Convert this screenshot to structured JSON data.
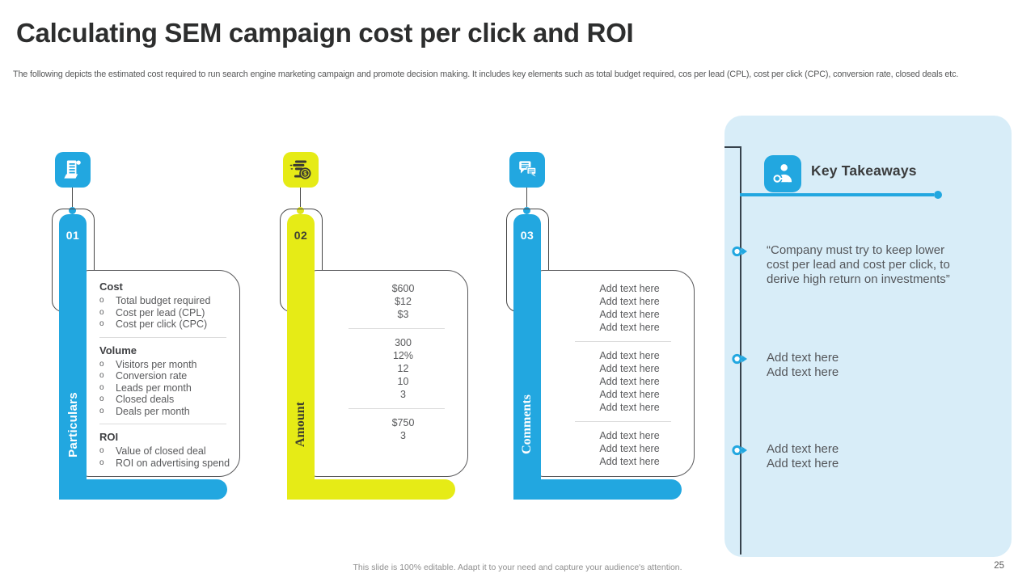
{
  "header": {
    "title": "Calculating SEM campaign cost per click and ROI",
    "subtitle": "The following depicts the estimated cost required to run search engine marketing campaign and promote decision making. It includes key elements such as total budget required, cos per lead (CPL), cost per click (CPC), conversion rate, closed deals etc."
  },
  "colors": {
    "blue": "#22a7e0",
    "yellow": "#e6eb16",
    "panel_bg": "#d8edf8",
    "connector_dark": "#37424c",
    "text_dark": "#3f4043",
    "text_gray": "#595a5c"
  },
  "columns": [
    {
      "number": "01",
      "label": "Particulars",
      "icon": "receipt-icon",
      "theme": "blue",
      "sections": [
        {
          "heading": "Cost",
          "items": [
            "Total budget required",
            "Cost per lead (CPL)",
            "Cost per click (CPC)"
          ]
        },
        {
          "heading": "Volume",
          "items": [
            "Visitors per month",
            "Conversion rate",
            "Leads per month",
            "Closed deals",
            "Deals per month"
          ]
        },
        {
          "heading": "ROI",
          "items": [
            "Value of closed deal",
            "ROI on advertising spend"
          ]
        }
      ]
    },
    {
      "number": "02",
      "label": "Amount",
      "icon": "money-coins-icon",
      "theme": "yellow",
      "value_groups": [
        [
          "$600",
          "$12",
          "$3"
        ],
        [
          "300",
          "12%",
          "12",
          "10",
          "3"
        ],
        [
          "$750",
          "3"
        ]
      ]
    },
    {
      "number": "03",
      "label": "Comments",
      "icon": "chat-bubbles-icon",
      "theme": "blue",
      "value_groups": [
        [
          "Add text here",
          "Add text here",
          "Add text here",
          "Add text here"
        ],
        [
          "Add text here",
          "Add text here",
          "Add text here",
          "Add text here",
          "Add text here"
        ],
        [
          "Add text here",
          "Add text here",
          "Add text here"
        ]
      ]
    }
  ],
  "takeaways": {
    "title": "Key Takeaways",
    "icon": "person-key-icon",
    "items": [
      {
        "type": "quote",
        "lines": [
          "“Company must try to keep lower cost per lead and cost per click, to derive high return on investments”"
        ]
      },
      {
        "type": "placeholder",
        "lines": [
          "Add text here",
          "Add text here"
        ]
      },
      {
        "type": "placeholder",
        "lines": [
          "Add text here",
          "Add text here"
        ]
      }
    ]
  },
  "footer": {
    "note": "This slide is 100% editable. Adapt it to your need and capture your audience's attention.",
    "page_number": "25"
  }
}
